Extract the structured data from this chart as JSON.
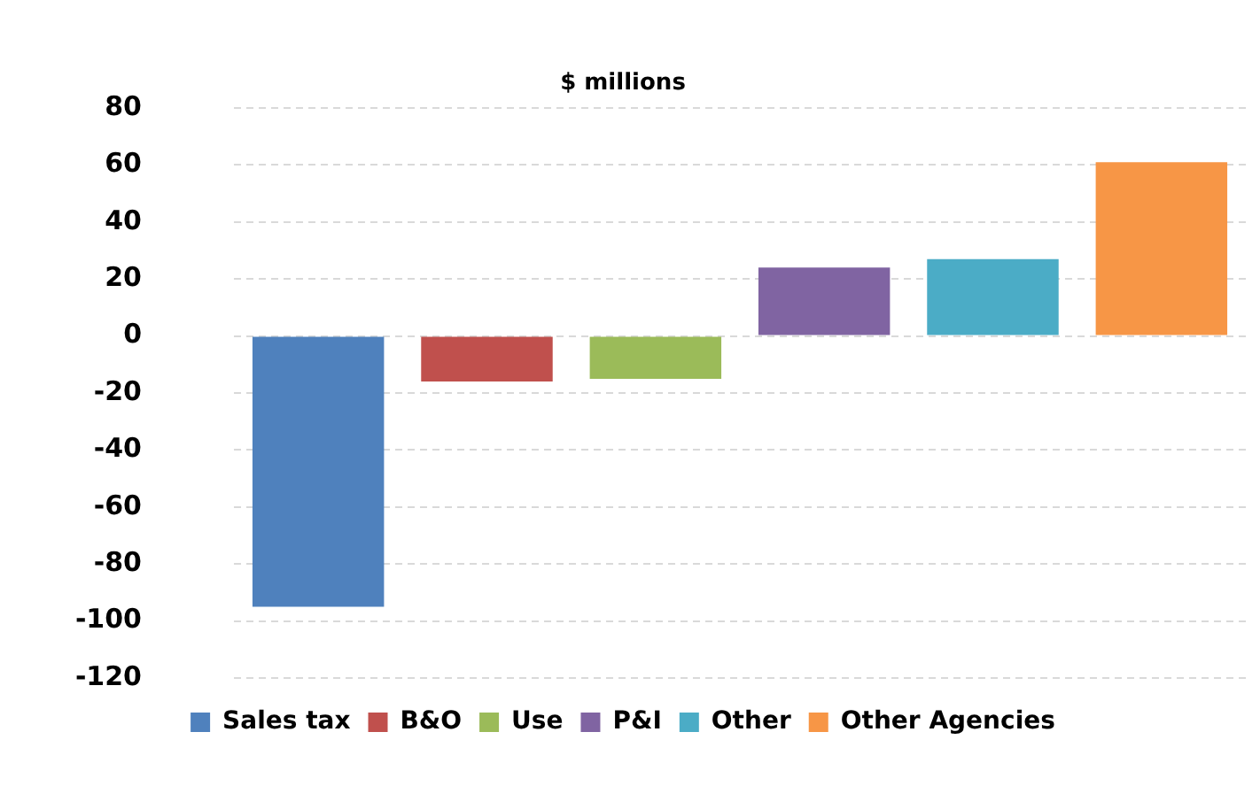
{
  "chart_data": {
    "type": "bar",
    "title": "$ millions",
    "categories": [
      null,
      null,
      null,
      null,
      null,
      null
    ],
    "series": [
      {
        "name": "Sales tax",
        "color": "#4f81bd",
        "values": [
          -95,
          null,
          null,
          null,
          null,
          null
        ]
      },
      {
        "name": "B&O",
        "color": "#c0504d",
        "values": [
          null,
          -16,
          null,
          null,
          null,
          null
        ]
      },
      {
        "name": "Use",
        "color": "#9bbb59",
        "values": [
          null,
          null,
          -15,
          null,
          null,
          null
        ]
      },
      {
        "name": "P&I",
        "color": "#8064a2",
        "values": [
          null,
          null,
          null,
          24,
          null,
          null
        ]
      },
      {
        "name": "Other",
        "color": "#4bacc6",
        "values": [
          null,
          null,
          null,
          null,
          27,
          null
        ]
      },
      {
        "name": "Other Agencies",
        "color": "#f79646",
        "values": [
          null,
          null,
          null,
          null,
          null,
          61
        ]
      }
    ],
    "ylim": [
      -120,
      80
    ],
    "yticks": [
      -120,
      -100,
      -80,
      -60,
      -40,
      -20,
      0,
      20,
      40,
      60,
      80
    ],
    "grid": "y",
    "legend": "bottom",
    "tick_labels": "y"
  }
}
